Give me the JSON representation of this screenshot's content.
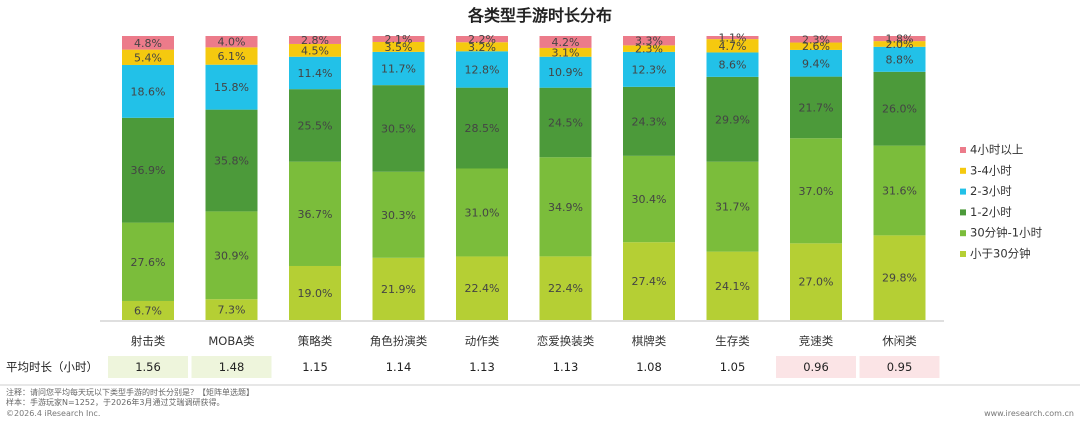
{
  "chart_data": {
    "type": "bar",
    "stacked": true,
    "title": "各类型手游时长分布",
    "categories": [
      "射击类",
      "MOBA类",
      "策略类",
      "角色扮演类",
      "动作类",
      "恋爱换装类",
      "棋牌类",
      "生存类",
      "竞速类",
      "休闲类"
    ],
    "series": [
      {
        "name": "小于30分钟",
        "color": "#b5cf34",
        "values": [
          6.7,
          7.3,
          19.0,
          21.9,
          22.4,
          22.4,
          27.4,
          24.1,
          27.0,
          29.8
        ]
      },
      {
        "name": "30分钟-1小时",
        "color": "#7bbd3b",
        "values": [
          27.6,
          30.9,
          36.7,
          30.3,
          31.0,
          34.9,
          30.4,
          31.7,
          37.0,
          31.6
        ]
      },
      {
        "name": "1-2小时",
        "color": "#4c9a3a",
        "values": [
          36.9,
          35.8,
          25.5,
          30.5,
          28.5,
          24.5,
          24.3,
          29.9,
          21.7,
          26.0
        ]
      },
      {
        "name": "2-3小时",
        "color": "#22c1e8",
        "values": [
          18.6,
          15.8,
          11.4,
          11.7,
          12.8,
          10.9,
          12.3,
          8.6,
          9.4,
          8.8
        ]
      },
      {
        "name": "3-4小时",
        "color": "#f5c90f",
        "values": [
          5.4,
          6.1,
          4.5,
          3.5,
          3.2,
          3.1,
          2.3,
          4.7,
          2.6,
          2.0
        ]
      },
      {
        "name": "4小时以上",
        "color": "#ec7b8a",
        "values": [
          4.8,
          4.0,
          2.8,
          2.1,
          2.2,
          4.2,
          3.3,
          1.1,
          2.3,
          1.8
        ]
      }
    ],
    "value_suffix": "%",
    "ylim": [
      0,
      100
    ],
    "legend_position": "right",
    "legend_order": [
      "4小时以上",
      "3-4小时",
      "2-3小时",
      "1-2小时",
      "30分钟-1小时",
      "小于30分钟"
    ],
    "average_row": {
      "label": "平均时长（小时）",
      "values": [
        "1.56",
        "1.48",
        "1.15",
        "1.14",
        "1.13",
        "1.13",
        "1.08",
        "1.05",
        "0.96",
        "0.95"
      ],
      "highlight": [
        "green",
        "green",
        "none",
        "none",
        "none",
        "none",
        "none",
        "none",
        "pink",
        "pink"
      ]
    }
  },
  "colors": {
    "highlight_green": "#eef5dc",
    "highlight_pink": "#fbe4e6",
    "axis": "#bfbfbf"
  },
  "notes": {
    "line1": "注释：请问您平均每天玩以下类型手游的时长分别是？【矩阵单选题】",
    "line2": "样本：手游玩家N=1252，于2026年3月通过艾瑞调研获得。",
    "copyright": "©2026.4 iResearch Inc.",
    "site": "www.iresearch.com.cn"
  }
}
